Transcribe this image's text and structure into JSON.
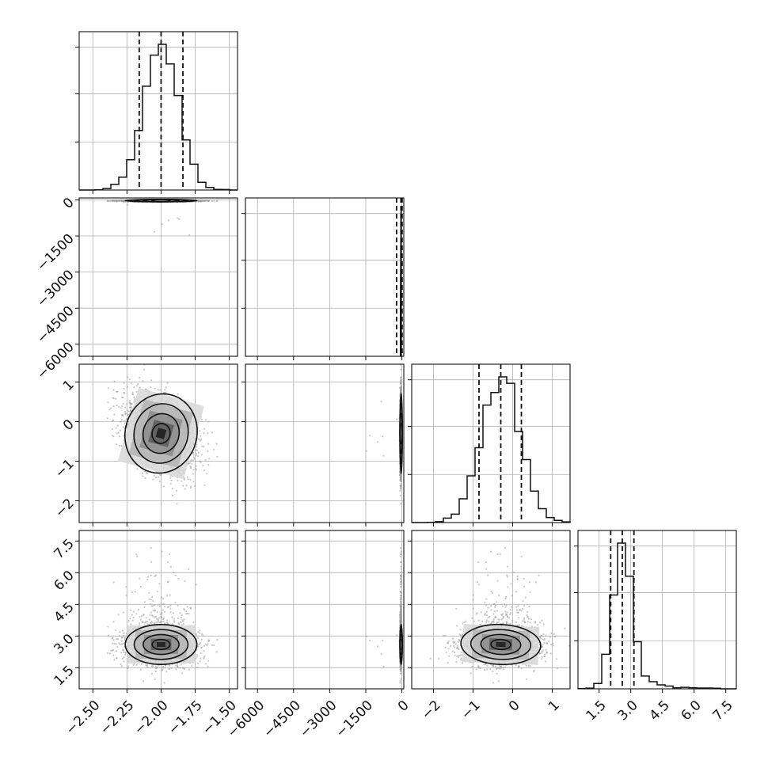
{
  "chart_data": {
    "type": "corner",
    "title": "",
    "grid": true,
    "parameters": [
      {
        "key": "p0",
        "label": "",
        "range": [
          -2.6,
          -1.44
        ],
        "ticks": [
          -2.5,
          -2.25,
          -2.0,
          -1.75,
          -1.5
        ],
        "tick_labels": [
          "−2.50",
          "−2.25",
          "−2.00",
          "−1.75",
          "−1.50"
        ],
        "mean": -2.0,
        "std": 0.125,
        "quantiles": [
          -2.16,
          -2.0,
          -1.84
        ],
        "hist_max_density": 3.1
      },
      {
        "key": "p1",
        "label": "",
        "range": [
          -6500,
          80
        ],
        "ticks": [
          -6000,
          -4500,
          -3000,
          -1500,
          0
        ],
        "tick_labels": [
          "−6000",
          "−4500",
          "−3000",
          "−1500",
          "0"
        ],
        "mean": -30,
        "std": 20,
        "quantiles": [
          -220,
          -40,
          10
        ],
        "note": "long left tail, nearly all mass near 0"
      },
      {
        "key": "p2",
        "label": "",
        "range": [
          -2.55,
          1.45
        ],
        "ticks": [
          -2,
          -1,
          0,
          1
        ],
        "tick_labels": [
          "−2",
          "−1",
          "0",
          "1"
        ],
        "mean": -0.3,
        "std": 0.48,
        "quantiles": [
          -0.85,
          -0.3,
          0.22
        ],
        "hist_max_density": 0.85
      },
      {
        "key": "p3",
        "label": "",
        "range": [
          0.5,
          8.0
        ],
        "ticks": [
          1.5,
          3.0,
          4.5,
          6.0,
          7.5
        ],
        "tick_labels": [
          "1.5",
          "3.0",
          "4.5",
          "6.0",
          "7.5"
        ],
        "mean": 2.6,
        "std": 0.45,
        "quantiles": [
          2.05,
          2.6,
          3.15
        ],
        "hist_max_density": 1.15
      }
    ],
    "pairs": [
      {
        "x": "p0",
        "y": "p1",
        "correlation": 0.0
      },
      {
        "x": "p0",
        "y": "p2",
        "correlation": 0.35
      },
      {
        "x": "p1",
        "y": "p2",
        "correlation": 0.0
      },
      {
        "x": "p0",
        "y": "p3",
        "correlation": 0.0
      },
      {
        "x": "p1",
        "y": "p3",
        "correlation": 0.0
      },
      {
        "x": "p2",
        "y": "p3",
        "correlation": 0.05
      }
    ],
    "contour_levels_sigma": [
      0.5,
      1.0,
      1.5,
      2.0
    ]
  }
}
